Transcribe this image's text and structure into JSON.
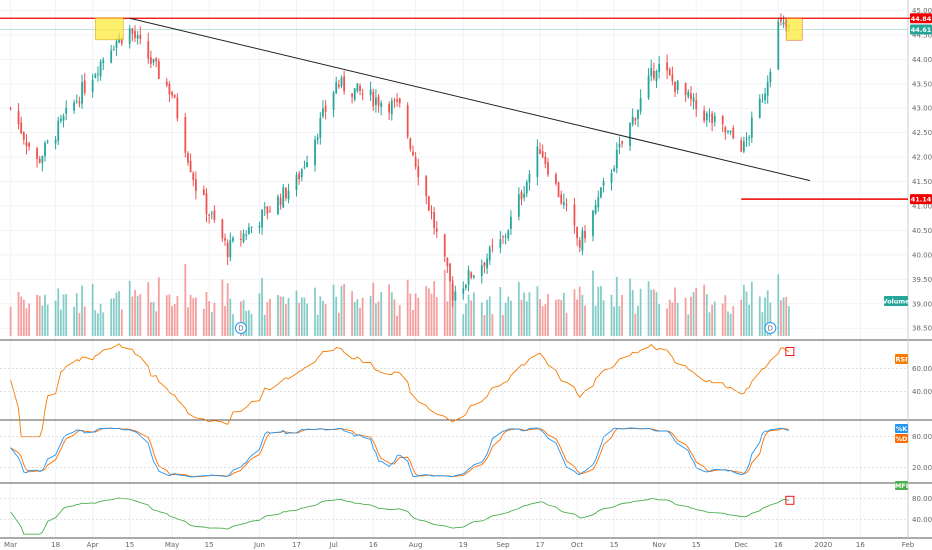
{
  "chart_data": {
    "type": "candlestick",
    "panes": {
      "price": {
        "y_ticks": [
          "45.00",
          "44.50",
          "44.00",
          "43.50",
          "43.00",
          "42.50",
          "42.00",
          "41.50",
          "41.00",
          "40.50",
          "40.00",
          "39.50",
          "39.00",
          "38.50"
        ],
        "ylim": [
          38.3,
          45.05
        ],
        "resistance_level": 44.84,
        "support_level": 41.14,
        "last_price": 44.61,
        "trendline": {
          "from": {
            "x": "2019-04-15",
            "y": 44.84
          },
          "to": {
            "x": "2019-12-28",
            "y": 41.52
          }
        },
        "highlight_boxes": [
          "April high",
          "December high"
        ],
        "volume_label": "Volume",
        "dividend_markers": [
          "D",
          "D"
        ]
      },
      "rsi": {
        "label": "RSI",
        "y_ticks": [
          "60.00",
          "40.00"
        ],
        "ylim": [
          20,
          80
        ]
      },
      "stochastic": {
        "labels": [
          "%K",
          "%D"
        ],
        "y_ticks": [
          "80.00",
          "20.00"
        ],
        "ylim": [
          0,
          100
        ]
      },
      "mfi": {
        "label": "MFI",
        "y_ticks": [
          "80.00",
          "40.00"
        ],
        "ylim": [
          20,
          100
        ]
      }
    },
    "x_ticks": [
      "Mar",
      "18",
      "Apr",
      "15",
      "May",
      "15",
      "Jun",
      "17",
      "Jul",
      "16",
      "Aug",
      "19",
      "Sep",
      "17",
      "Oct",
      "15",
      "Nov",
      "15",
      "Dec",
      "16",
      "2020",
      "16",
      "Feb"
    ],
    "colors": {
      "up": "#26a69a",
      "down": "#ef5350",
      "resistance_line": "#ee0000",
      "trendline": "#222222",
      "rsi_line": "#f57c00",
      "k_line": "#2196f3",
      "d_line": "#ff6d00",
      "mfi_line": "#4caf50",
      "highlight_fill": "#ffeb3b"
    },
    "key_points": [
      {
        "date": "2019-03-01",
        "close": 43.0
      },
      {
        "date": "2019-03-11",
        "close": 41.9
      },
      {
        "date": "2019-04-08",
        "close": 44.3
      },
      {
        "date": "2019-04-15",
        "close": 44.6
      },
      {
        "date": "2019-05-01",
        "close": 43.3
      },
      {
        "date": "2019-05-10",
        "close": 41.4
      },
      {
        "date": "2019-05-22",
        "close": 40.1
      },
      {
        "date": "2019-06-17",
        "close": 41.5
      },
      {
        "date": "2019-07-02",
        "close": 43.5
      },
      {
        "date": "2019-07-26",
        "close": 43.0
      },
      {
        "date": "2019-08-05",
        "close": 41.2
      },
      {
        "date": "2019-08-15",
        "close": 39.2
      },
      {
        "date": "2019-09-03",
        "close": 40.3
      },
      {
        "date": "2019-09-17",
        "close": 42.2
      },
      {
        "date": "2019-10-02",
        "close": 40.2
      },
      {
        "date": "2019-10-15",
        "close": 41.9
      },
      {
        "date": "2019-10-31",
        "close": 43.9
      },
      {
        "date": "2019-11-15",
        "close": 43.0
      },
      {
        "date": "2019-12-03",
        "close": 42.2
      },
      {
        "date": "2019-12-11",
        "close": 43.4
      },
      {
        "date": "2019-12-16",
        "close": 44.7
      },
      {
        "date": "2019-12-20",
        "close": 44.61
      }
    ]
  }
}
